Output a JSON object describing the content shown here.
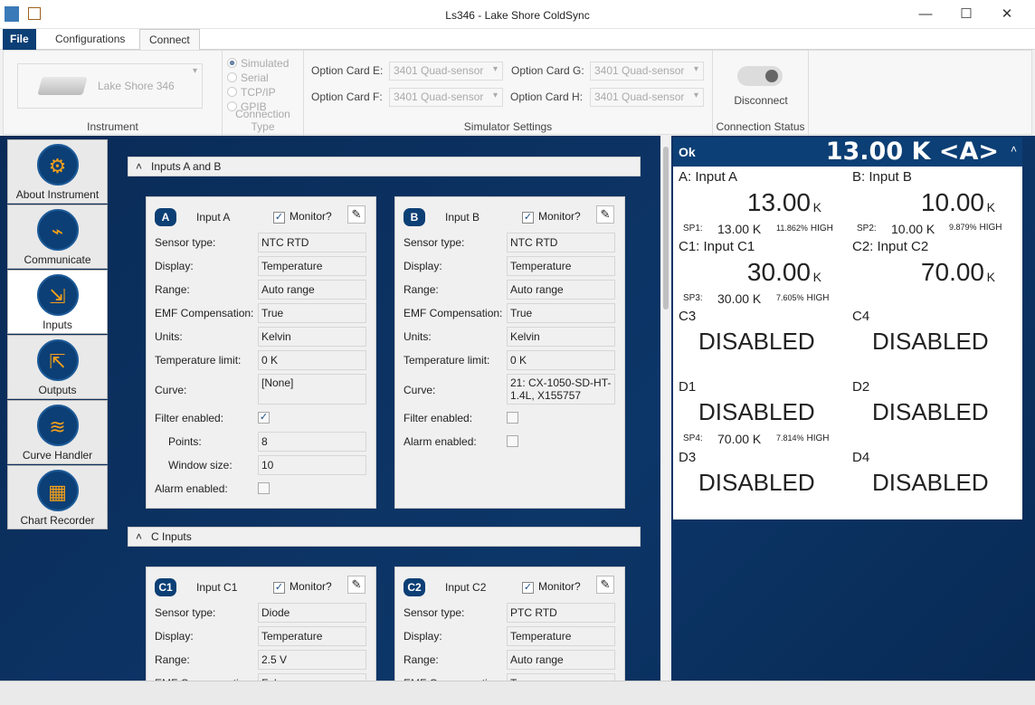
{
  "window": {
    "title": "Ls346 - Lake Shore ColdSync",
    "minimize": "—",
    "maximize": "☐",
    "close": "✕"
  },
  "tabs": [
    {
      "label": "File"
    },
    {
      "label": "Configurations"
    },
    {
      "label": "Connect"
    }
  ],
  "ribbon": {
    "instrument": {
      "value": "Lake Shore 346",
      "label": "Instrument"
    },
    "connection_type": {
      "label": "Connection Type",
      "options": [
        "Simulated",
        "Serial",
        "TCP/IP",
        "GPIB"
      ],
      "selected": "Simulated"
    },
    "simulator": {
      "label": "Simulator Settings",
      "cards": [
        {
          "label": "Option Card E:",
          "value": "3401 Quad-sensor"
        },
        {
          "label": "Option Card F:",
          "value": "3401 Quad-sensor"
        },
        {
          "label": "Option Card G:",
          "value": "3401 Quad-sensor"
        },
        {
          "label": "Option Card H:",
          "value": "3401 Quad-sensor"
        }
      ]
    },
    "status": {
      "button": "Disconnect",
      "label": "Connection Status",
      "connected": true
    }
  },
  "sidebar": [
    {
      "label": "About Instrument",
      "icon": "gears-icon"
    },
    {
      "label": "Communicate",
      "icon": "usb-plug-icon"
    },
    {
      "label": "Inputs",
      "icon": "inputs-icon",
      "selected": true
    },
    {
      "label": "Outputs",
      "icon": "outputs-icon"
    },
    {
      "label": "Curve Handler",
      "icon": "curve-icon"
    },
    {
      "label": "Chart Recorder",
      "icon": "chart-icon"
    }
  ],
  "sections": [
    {
      "title": "Inputs A and B",
      "cards": [
        {
          "badge": "A",
          "name": "Input A",
          "monitor_label": "Monitor?",
          "monitor": true,
          "rows": [
            {
              "label": "Sensor type:",
              "value": "NTC RTD"
            },
            {
              "label": "Display:",
              "value": "Temperature"
            },
            {
              "label": "Range:",
              "value": "Auto range"
            },
            {
              "label": "EMF Compensation:",
              "value": "True"
            },
            {
              "label": "Units:",
              "value": "Kelvin"
            },
            {
              "label": "Temperature limit:",
              "value": "0 K"
            },
            {
              "label": "Curve:",
              "value": "[None]"
            }
          ],
          "filter_label": "Filter enabled:",
          "filter": true,
          "points_label": "Points:",
          "points": "8",
          "window_label": "Window size:",
          "window": "10",
          "alarm_label": "Alarm enabled:",
          "alarm": false
        },
        {
          "badge": "B",
          "name": "Input B",
          "monitor_label": "Monitor?",
          "monitor": true,
          "rows": [
            {
              "label": "Sensor type:",
              "value": "NTC RTD"
            },
            {
              "label": "Display:",
              "value": "Temperature"
            },
            {
              "label": "Range:",
              "value": "Auto range"
            },
            {
              "label": "EMF Compensation:",
              "value": "True"
            },
            {
              "label": "Units:",
              "value": "Kelvin"
            },
            {
              "label": "Temperature limit:",
              "value": "0 K"
            },
            {
              "label": "Curve:",
              "value": "21: CX-1050-SD-HT-1.4L, X155757"
            }
          ],
          "filter_label": "Filter enabled:",
          "filter": false,
          "alarm_label": "Alarm enabled:",
          "alarm": false
        }
      ]
    },
    {
      "title": "C Inputs",
      "cards": [
        {
          "badge": "C1",
          "name": "Input C1",
          "monitor_label": "Monitor?",
          "monitor": true,
          "rows": [
            {
              "label": "Sensor type:",
              "value": "Diode"
            },
            {
              "label": "Display:",
              "value": "Temperature"
            },
            {
              "label": "Range:",
              "value": "2.5 V"
            },
            {
              "label": "EMF Compensation:",
              "value": "False"
            }
          ]
        },
        {
          "badge": "C2",
          "name": "Input C2",
          "monitor_label": "Monitor?",
          "monitor": true,
          "rows": [
            {
              "label": "Sensor type:",
              "value": "PTC RTD"
            },
            {
              "label": "Display:",
              "value": "Temperature"
            },
            {
              "label": "Range:",
              "value": "Auto range"
            },
            {
              "label": "EMF Compensation:",
              "value": "True"
            }
          ]
        }
      ]
    }
  ],
  "monitor": {
    "status": "Ok",
    "reading": "13.00 K <A>",
    "cells": [
      {
        "name": "A: Input A",
        "value": "13.00",
        "unit": "K",
        "sp_label": "SP1:",
        "sp_value": "13.00 K",
        "sp_pct": "11.862%",
        "sp_range": "HIGH"
      },
      {
        "name": "B: Input B",
        "value": "10.00",
        "unit": "K",
        "sp_label": "SP2:",
        "sp_value": "10.00 K",
        "sp_pct": "9.879%",
        "sp_range": "HIGH"
      },
      {
        "name": "C1: Input C1",
        "value": "30.00",
        "unit": "K",
        "sp_label": "SP3:",
        "sp_value": "30.00 K",
        "sp_pct": "7.605%",
        "sp_range": "HIGH"
      },
      {
        "name": "C2: Input C2",
        "value": "70.00",
        "unit": "K"
      },
      {
        "name": "C3",
        "disabled": "DISABLED"
      },
      {
        "name": "C4",
        "disabled": "DISABLED"
      },
      {
        "name": "D1",
        "disabled": "DISABLED",
        "sp_label": "SP4:",
        "sp_value": "70.00 K",
        "sp_pct": "7.814%",
        "sp_range": "HIGH"
      },
      {
        "name": "D2",
        "disabled": "DISABLED"
      },
      {
        "name": "D3",
        "disabled": "DISABLED"
      },
      {
        "name": "D4",
        "disabled": "DISABLED"
      }
    ]
  }
}
